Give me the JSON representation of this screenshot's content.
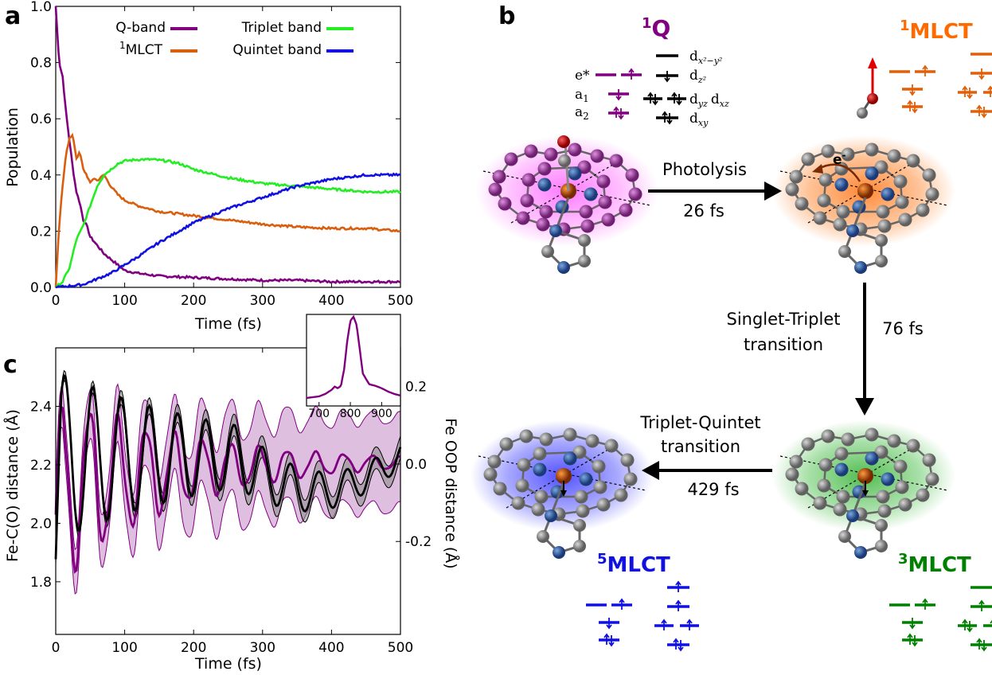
{
  "panels": {
    "a": "a",
    "b": "b",
    "c": "c"
  },
  "colors": {
    "qband": "#800080",
    "mlct1": "#d95f0e",
    "triplet": "#22ee22",
    "quintet": "#1010e0",
    "black": "#000000",
    "fe": "#b44a00",
    "n": "#2a5aa0",
    "c": "#8a8a8a"
  },
  "chart_data": [
    {
      "type": "line",
      "panel": "a",
      "xlabel": "Time (fs)",
      "ylabel": "Population",
      "xlim": [
        0,
        500
      ],
      "ylim": [
        0,
        1.0
      ],
      "xticks": [
        0,
        100,
        200,
        300,
        400,
        500
      ],
      "yticks": [
        "0.0",
        "0.2",
        "0.4",
        "0.6",
        "0.8",
        "1.0"
      ],
      "ytick_values": [
        0,
        0.2,
        0.4,
        0.6,
        0.8,
        1.0
      ],
      "legend": [
        "Q-band",
        "MLCT",
        "Triplet band",
        "Quintet band"
      ],
      "legend_sup": "1",
      "series": [
        {
          "name": "Q-band",
          "color": "#800080",
          "x": [
            0,
            5,
            10,
            15,
            20,
            25,
            30,
            35,
            40,
            45,
            50,
            60,
            70,
            80,
            90,
            100,
            120,
            150,
            200,
            250,
            300,
            350,
            400,
            450,
            500
          ],
          "y": [
            1.0,
            0.8,
            0.75,
            0.62,
            0.52,
            0.42,
            0.34,
            0.3,
            0.24,
            0.22,
            0.18,
            0.15,
            0.12,
            0.1,
            0.08,
            0.06,
            0.05,
            0.04,
            0.035,
            0.03,
            0.025,
            0.025,
            0.02,
            0.02,
            0.02
          ]
        },
        {
          "name": "MLCT",
          "color": "#d95f0e",
          "x": [
            0,
            5,
            10,
            15,
            20,
            25,
            30,
            35,
            40,
            45,
            50,
            55,
            60,
            70,
            80,
            90,
            100,
            120,
            150,
            200,
            250,
            300,
            350,
            400,
            450,
            500
          ],
          "y": [
            0.0,
            0.22,
            0.36,
            0.48,
            0.53,
            0.54,
            0.46,
            0.48,
            0.42,
            0.4,
            0.37,
            0.39,
            0.38,
            0.4,
            0.36,
            0.33,
            0.31,
            0.29,
            0.27,
            0.255,
            0.24,
            0.225,
            0.215,
            0.21,
            0.21,
            0.2
          ]
        },
        {
          "name": "Triplet band",
          "color": "#22ee22",
          "x": [
            0,
            10,
            20,
            30,
            40,
            50,
            60,
            70,
            80,
            90,
            100,
            120,
            140,
            160,
            180,
            200,
            250,
            300,
            350,
            400,
            450,
            500
          ],
          "y": [
            0.0,
            0.02,
            0.07,
            0.17,
            0.22,
            0.29,
            0.36,
            0.4,
            0.42,
            0.44,
            0.45,
            0.455,
            0.455,
            0.45,
            0.44,
            0.42,
            0.39,
            0.37,
            0.36,
            0.35,
            0.34,
            0.34
          ]
        },
        {
          "name": "Quintet band",
          "color": "#1010e0",
          "x": [
            0,
            20,
            40,
            60,
            80,
            100,
            120,
            150,
            200,
            250,
            300,
            350,
            400,
            450,
            500
          ],
          "y": [
            0.0,
            0.005,
            0.01,
            0.03,
            0.05,
            0.08,
            0.11,
            0.16,
            0.23,
            0.28,
            0.32,
            0.36,
            0.385,
            0.4,
            0.4
          ]
        }
      ]
    },
    {
      "type": "line",
      "panel": "c",
      "xlabel": "Time (fs)",
      "ylabel": "Fe-C(O) distance (Å)",
      "y2label": "Fe OOP distance (Å)",
      "xlim": [
        0,
        500
      ],
      "ylim": [
        1.62,
        2.6
      ],
      "y2lim": [
        -0.44,
        0.3
      ],
      "xticks": [
        0,
        100,
        200,
        300,
        400,
        500
      ],
      "yticks": [
        "1.8",
        "2.0",
        "2.2",
        "2.4"
      ],
      "ytick_values": [
        1.8,
        2.0,
        2.2,
        2.4
      ],
      "y2ticks": [
        "-0.2",
        "0.0",
        "0.2"
      ],
      "y2tick_values": [
        -0.2,
        0.0,
        0.2
      ],
      "series": [
        {
          "name": "Fe-C(O) distance",
          "color": "#800080",
          "axis": "left",
          "band": 0.11
        },
        {
          "name": "Fe OOP distance",
          "color": "#000000",
          "axis": "right",
          "band": 0.02
        }
      ]
    },
    {
      "type": "line",
      "panel": "c-inset",
      "xlim": [
        660,
        960
      ],
      "xticks": [
        700,
        800,
        900
      ],
      "series": [
        {
          "name": "spectrum",
          "color": "#800080",
          "x": [
            660,
            700,
            720,
            740,
            750,
            760,
            770,
            780,
            790,
            800,
            810,
            820,
            830,
            840,
            860,
            880,
            900,
            920,
            940,
            960
          ],
          "y": [
            0.0,
            0.02,
            0.05,
            0.1,
            0.14,
            0.12,
            0.15,
            0.35,
            0.7,
            0.95,
            1.0,
            0.9,
            0.6,
            0.3,
            0.17,
            0.15,
            0.12,
            0.08,
            0.05,
            0.03
          ]
        }
      ]
    }
  ],
  "diagram": {
    "q_label": "Q",
    "q_sup": "1",
    "mlct1_label": "MLCT",
    "mlct1_sup": "1",
    "mlct3_label": "MLCT",
    "mlct3_sup": "3",
    "mlct5_label": "MLCT",
    "mlct5_sup": "5",
    "orbitals": [
      "e*",
      "a",
      "a",
      "d",
      "d",
      "d",
      "d",
      "d"
    ],
    "orbital_subs": [
      "1",
      "2",
      "x²−y²",
      "z²",
      "yz",
      "xz",
      "xy"
    ],
    "electron": "e",
    "electron_sup": "-",
    "step1_label": "Photolysis",
    "step1_time": "26 fs",
    "step2_label_1": "Singlet-Triplet",
    "step2_label_2": "transition",
    "step2_time": "76 fs",
    "step3_label_1": "Triplet-Quintet",
    "step3_label_2": "transition",
    "step3_time": "429 fs"
  }
}
